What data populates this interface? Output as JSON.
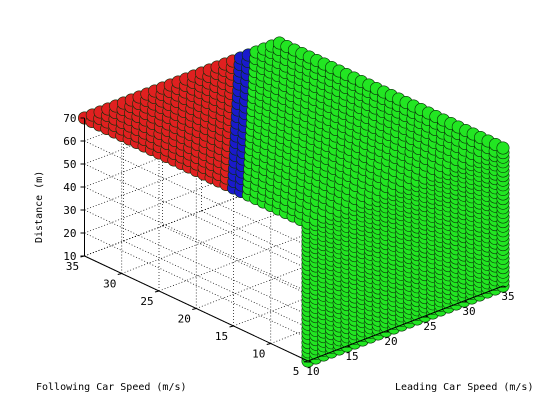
{
  "chart_data": {
    "type": "scatter3d",
    "title": "",
    "xlabel": "Leading Car Speed (m/s)",
    "ylabel": "Following Car Speed (m/s)",
    "zlabel": "Distance (m)",
    "xlim": [
      10,
      35
    ],
    "ylim": [
      5,
      35
    ],
    "zlim": [
      10,
      70
    ],
    "xticks": [
      "10",
      "15",
      "20",
      "25",
      "30",
      "35"
    ],
    "yticks": [
      "5",
      "10",
      "15",
      "20",
      "25",
      "30",
      "35"
    ],
    "zticks": [
      "10",
      "20",
      "30",
      "40",
      "50",
      "60",
      "70"
    ],
    "grid": true,
    "colors": {
      "red": "#e02020",
      "blue": "#1a1acc",
      "green": "#22e622",
      "edge": "#0a300a"
    },
    "marker": "circle",
    "regions": [
      {
        "color": "red",
        "description_rule": "following speed exceeds leading speed by ~6 m/s or more"
      },
      {
        "color": "blue",
        "description_rule": "narrow transition band between red and green"
      },
      {
        "color": "green",
        "description_rule": "remaining grid points"
      }
    ],
    "grid_points": {
      "x": {
        "start": 10,
        "end": 35,
        "step": 1
      },
      "y": {
        "start": 5,
        "end": 35,
        "step": 1
      },
      "z": {
        "start": 10,
        "end": 70,
        "step": 2
      }
    },
    "boundaries": {
      "blue_min_offset": 4,
      "red_min_offset": 6
    }
  }
}
